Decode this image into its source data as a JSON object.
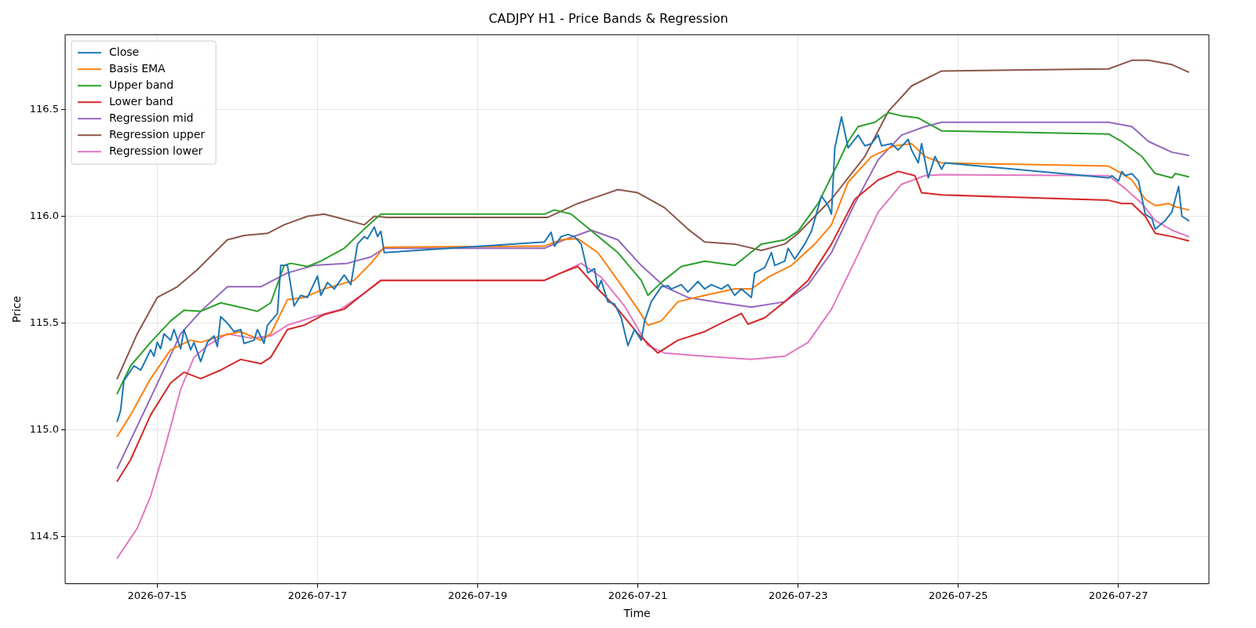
{
  "chart_data": {
    "type": "line",
    "title": "CADJPY H1 - Price Bands & Regression",
    "xlabel": "Time",
    "ylabel": "Price",
    "xlim": [
      "2026-07-13T20:24",
      "2026-07-28T03:05"
    ],
    "xticks": [
      "2026-07-15",
      "2026-07-17",
      "2026-07-19",
      "2026-07-21",
      "2026-07-23",
      "2026-07-25",
      "2026-07-27"
    ],
    "ylim": [
      114.28,
      116.85
    ],
    "yticks": [
      114.5,
      {
        "value": 115,
        "label": "115.0"
      },
      115.5,
      {
        "value": 116,
        "label": "116.0"
      },
      116.5
    ],
    "grid": true,
    "legend": "top left",
    "series": [
      {
        "name": "Close",
        "color": "#1f77b4",
        "x": [
          "2026-07-14T12:00",
          "2026-07-14T13:00",
          "2026-07-14T14:00",
          "2026-07-14T17:00",
          "2026-07-14T19:00",
          "2026-07-14T20:00",
          "2026-07-14T22:00",
          "2026-07-14T23:00",
          "2026-07-15T00:00",
          "2026-07-15T01:00",
          "2026-07-15T02:00",
          "2026-07-15T04:00",
          "2026-07-15T05:00",
          "2026-07-15T07:00",
          "2026-07-15T08:00",
          "2026-07-15T10:00",
          "2026-07-15T11:00",
          "2026-07-15T13:00",
          "2026-07-15T15:00",
          "2026-07-15T17:00",
          "2026-07-15T18:00",
          "2026-07-15T19:00",
          "2026-07-15T21:00",
          "2026-07-15T23:00",
          "2026-07-16T01:00",
          "2026-07-16T02:00",
          "2026-07-16T05:00",
          "2026-07-16T06:00",
          "2026-07-16T08:00",
          "2026-07-16T09:00",
          "2026-07-16T12:00",
          "2026-07-16T13:00",
          "2026-07-16T15:00",
          "2026-07-16T17:00",
          "2026-07-16T19:00",
          "2026-07-16T21:00",
          "2026-07-17T00:00",
          "2026-07-17T01:00",
          "2026-07-17T03:00",
          "2026-07-17T05:00",
          "2026-07-17T08:00",
          "2026-07-17T10:00",
          "2026-07-17T12:00",
          "2026-07-17T14:00",
          "2026-07-17T15:00",
          "2026-07-17T17:00",
          "2026-07-17T18:00",
          "2026-07-17T19:00",
          "2026-07-17T20:00",
          "2026-07-19T20:00",
          "2026-07-19T22:00",
          "2026-07-19T23:00",
          "2026-07-20T01:00",
          "2026-07-20T03:00",
          "2026-07-20T05:00",
          "2026-07-20T07:00",
          "2026-07-20T09:00",
          "2026-07-20T11:00",
          "2026-07-20T12:00",
          "2026-07-20T13:00",
          "2026-07-20T15:00",
          "2026-07-20T17:00",
          "2026-07-20T19:00",
          "2026-07-20T21:00",
          "2026-07-20T23:00",
          "2026-07-21T01:00",
          "2026-07-21T02:00",
          "2026-07-21T04:00",
          "2026-07-21T07:00",
          "2026-07-21T09:00",
          "2026-07-21T10:00",
          "2026-07-21T13:00",
          "2026-07-21T15:00",
          "2026-07-21T18:00",
          "2026-07-21T20:00",
          "2026-07-21T22:00",
          "2026-07-22T01:00",
          "2026-07-22T03:00",
          "2026-07-22T05:00",
          "2026-07-22T07:00",
          "2026-07-22T10:00",
          "2026-07-22T11:00",
          "2026-07-22T14:00",
          "2026-07-22T16:00",
          "2026-07-22T17:00",
          "2026-07-22T20:00",
          "2026-07-22T21:00",
          "2026-07-22T23:00",
          "2026-07-23T02:00",
          "2026-07-23T04:00",
          "2026-07-23T07:00",
          "2026-07-23T09:00",
          "2026-07-23T10:00",
          "2026-07-23T11:00",
          "2026-07-23T13:00",
          "2026-07-23T15:00",
          "2026-07-23T18:00",
          "2026-07-23T20:00",
          "2026-07-23T22:00",
          "2026-07-24T00:00",
          "2026-07-24T01:00",
          "2026-07-24T04:00",
          "2026-07-24T06:00",
          "2026-07-24T09:00",
          "2026-07-24T10:00",
          "2026-07-24T12:00",
          "2026-07-24T13:00",
          "2026-07-24T15:00",
          "2026-07-24T17:00",
          "2026-07-24T19:00",
          "2026-07-24T20:00",
          "2026-07-26T21:00",
          "2026-07-26T22:00",
          "2026-07-27T00:00",
          "2026-07-27T01:00",
          "2026-07-27T02:00",
          "2026-07-27T04:00",
          "2026-07-27T06:00",
          "2026-07-27T08:00",
          "2026-07-27T10:00",
          "2026-07-27T11:00",
          "2026-07-27T14:00",
          "2026-07-27T16:00",
          "2026-07-27T18:00",
          "2026-07-27T19:00",
          "2026-07-27T21:00"
        ],
        "values": [
          115.04,
          115.09,
          115.23,
          115.3,
          115.28,
          115.31,
          115.375,
          115.345,
          115.41,
          115.38,
          115.45,
          115.42,
          115.47,
          115.38,
          115.47,
          115.375,
          115.41,
          115.32,
          115.41,
          115.44,
          115.39,
          115.53,
          115.5,
          115.46,
          115.47,
          115.405,
          115.42,
          115.47,
          115.405,
          115.49,
          115.545,
          115.77,
          115.77,
          115.58,
          115.63,
          115.62,
          115.72,
          115.63,
          115.69,
          115.66,
          115.725,
          115.68,
          115.87,
          115.905,
          115.895,
          115.95,
          115.905,
          115.93,
          115.83,
          115.88,
          115.925,
          115.86,
          115.905,
          115.915,
          115.905,
          115.87,
          115.735,
          115.755,
          115.66,
          115.7,
          115.6,
          115.59,
          115.525,
          115.395,
          115.47,
          115.42,
          115.51,
          115.6,
          115.67,
          115.675,
          115.66,
          115.68,
          115.645,
          115.695,
          115.66,
          115.68,
          115.66,
          115.68,
          115.63,
          115.66,
          115.62,
          115.735,
          115.76,
          115.83,
          115.77,
          115.79,
          115.85,
          115.8,
          115.87,
          115.93,
          116.095,
          116.05,
          116.01,
          116.32,
          116.465,
          116.32,
          116.38,
          116.33,
          116.34,
          116.38,
          116.33,
          116.34,
          116.31,
          116.36,
          116.31,
          116.25,
          116.34,
          116.18,
          116.28,
          116.22,
          116.25,
          116.18,
          116.19,
          116.165,
          116.21,
          116.19,
          116.2,
          116.165,
          116.01,
          115.99,
          115.94,
          115.98,
          116.02,
          116.14,
          116.0,
          115.98
        ]
      },
      {
        "name": "Basis EMA",
        "color": "#ff7f0e",
        "x": [
          "2026-07-14T12:00",
          "2026-07-14T16:00",
          "2026-07-14T22:00",
          "2026-07-15T04:00",
          "2026-07-15T10:00",
          "2026-07-15T13:00",
          "2026-07-15T19:00",
          "2026-07-16T01:00",
          "2026-07-16T07:00",
          "2026-07-16T10:00",
          "2026-07-16T15:00",
          "2026-07-16T20:00",
          "2026-07-17T02:00",
          "2026-07-17T11:00",
          "2026-07-17T16:00",
          "2026-07-17T20:00",
          "2026-07-19T20:00",
          "2026-07-20T01:00",
          "2026-07-20T06:00",
          "2026-07-20T12:00",
          "2026-07-20T18:00",
          "2026-07-21T00:00",
          "2026-07-21T03:00",
          "2026-07-21T07:00",
          "2026-07-21T12:00",
          "2026-07-21T20:00",
          "2026-07-22T05:00",
          "2026-07-22T10:00",
          "2026-07-22T15:00",
          "2026-07-22T22:00",
          "2026-07-23T05:00",
          "2026-07-23T10:00",
          "2026-07-23T15:00",
          "2026-07-23T22:00",
          "2026-07-24T05:00",
          "2026-07-24T10:00",
          "2026-07-24T14:00",
          "2026-07-24T19:00",
          "2026-07-26T21:00",
          "2026-07-27T01:00",
          "2026-07-27T04:00",
          "2026-07-27T08:00",
          "2026-07-27T11:00",
          "2026-07-27T15:00",
          "2026-07-27T17:00",
          "2026-07-27T21:00"
        ],
        "values": [
          114.97,
          115.07,
          115.24,
          115.375,
          115.42,
          115.41,
          115.44,
          115.46,
          115.42,
          115.45,
          115.61,
          115.62,
          115.66,
          115.7,
          115.78,
          115.855,
          115.86,
          115.89,
          115.895,
          115.83,
          115.7,
          115.565,
          115.49,
          115.51,
          115.6,
          115.63,
          115.66,
          115.66,
          115.715,
          115.77,
          115.87,
          115.96,
          116.16,
          116.28,
          116.33,
          116.34,
          116.28,
          116.25,
          116.235,
          116.2,
          116.17,
          116.08,
          116.05,
          116.06,
          116.045,
          116.03
        ]
      },
      {
        "name": "Upper band",
        "color": "#2ca02c",
        "x": [
          "2026-07-14T12:00",
          "2026-07-14T16:00",
          "2026-07-14T22:00",
          "2026-07-15T04:00",
          "2026-07-15T08:00",
          "2026-07-15T13:00",
          "2026-07-15T19:00",
          "2026-07-16T02:00",
          "2026-07-16T06:00",
          "2026-07-16T10:00",
          "2026-07-16T14:00",
          "2026-07-16T16:00",
          "2026-07-16T21:00",
          "2026-07-17T01:00",
          "2026-07-17T08:00",
          "2026-07-17T14:00",
          "2026-07-17T19:00",
          "2026-07-19T20:00",
          "2026-07-19T23:00",
          "2026-07-20T04:00",
          "2026-07-20T11:00",
          "2026-07-20T18:00",
          "2026-07-21T01:00",
          "2026-07-21T03:00",
          "2026-07-21T07:00",
          "2026-07-21T13:00",
          "2026-07-21T20:00",
          "2026-07-22T05:00",
          "2026-07-22T09:00",
          "2026-07-22T13:00",
          "2026-07-22T20:00",
          "2026-07-23T00:00",
          "2026-07-23T06:00",
          "2026-07-23T12:00",
          "2026-07-23T15:00",
          "2026-07-23T18:00",
          "2026-07-23T23:00",
          "2026-07-24T03:00",
          "2026-07-24T07:00",
          "2026-07-24T12:00",
          "2026-07-24T19:00",
          "2026-07-26T21:00",
          "2026-07-27T01:00",
          "2026-07-27T07:00",
          "2026-07-27T11:00",
          "2026-07-27T16:00",
          "2026-07-27T17:00",
          "2026-07-27T21:00"
        ],
        "values": [
          115.17,
          115.3,
          115.41,
          115.51,
          115.56,
          115.555,
          115.595,
          115.57,
          115.555,
          115.595,
          115.77,
          115.78,
          115.765,
          115.79,
          115.85,
          115.94,
          116.01,
          116.01,
          116.03,
          116.01,
          115.92,
          115.83,
          115.7,
          115.63,
          115.69,
          115.765,
          115.79,
          115.77,
          115.82,
          115.87,
          115.89,
          115.93,
          116.06,
          116.25,
          116.35,
          116.42,
          116.44,
          116.485,
          116.47,
          116.46,
          116.4,
          116.385,
          116.35,
          116.28,
          116.2,
          116.18,
          116.2,
          116.185
        ]
      },
      {
        "name": "Lower band",
        "color": "#d62728",
        "x": [
          "2026-07-14T12:00",
          "2026-07-14T16:00",
          "2026-07-14T22:00",
          "2026-07-15T04:00",
          "2026-07-15T08:00",
          "2026-07-15T13:00",
          "2026-07-15T19:00",
          "2026-07-16T01:00",
          "2026-07-16T07:00",
          "2026-07-16T10:00",
          "2026-07-16T15:00",
          "2026-07-16T20:00",
          "2026-07-17T02:00",
          "2026-07-17T08:00",
          "2026-07-17T14:00",
          "2026-07-17T19:00",
          "2026-07-19T20:00",
          "2026-07-20T01:00",
          "2026-07-20T06:00",
          "2026-07-20T12:00",
          "2026-07-20T18:00",
          "2026-07-21T00:00",
          "2026-07-21T06:00",
          "2026-07-21T12:00",
          "2026-07-21T20:00",
          "2026-07-22T01:00",
          "2026-07-22T07:00",
          "2026-07-22T09:00",
          "2026-07-22T14:00",
          "2026-07-22T20:00",
          "2026-07-23T03:00",
          "2026-07-23T10:00",
          "2026-07-23T17:00",
          "2026-07-24T00:00",
          "2026-07-24T06:00",
          "2026-07-24T11:00",
          "2026-07-24T13:00",
          "2026-07-24T19:00",
          "2026-07-26T21:00",
          "2026-07-27T01:00",
          "2026-07-27T04:00",
          "2026-07-27T08:00",
          "2026-07-27T11:00",
          "2026-07-27T16:00",
          "2026-07-27T21:00"
        ],
        "values": [
          114.76,
          114.86,
          115.07,
          115.22,
          115.27,
          115.24,
          115.28,
          115.33,
          115.31,
          115.34,
          115.47,
          115.49,
          115.54,
          115.565,
          115.64,
          115.7,
          115.7,
          115.735,
          115.765,
          115.66,
          115.565,
          115.45,
          115.36,
          115.42,
          115.46,
          115.5,
          115.545,
          115.495,
          115.525,
          115.6,
          115.7,
          115.87,
          116.08,
          116.17,
          116.21,
          116.19,
          116.11,
          116.1,
          116.075,
          116.06,
          116.06,
          116.0,
          115.92,
          115.905,
          115.885
        ]
      },
      {
        "name": "Regression mid",
        "color": "#9467bd",
        "x": [
          "2026-07-14T12:00",
          "2026-07-14T22:00",
          "2026-07-15T07:00",
          "2026-07-15T13:00",
          "2026-07-15T21:00",
          "2026-07-16T07:00",
          "2026-07-16T15:00",
          "2026-07-16T23:00",
          "2026-07-17T09:00",
          "2026-07-17T16:00",
          "2026-07-17T20:00",
          "2026-07-19T20:00",
          "2026-07-20T02:00",
          "2026-07-20T10:00",
          "2026-07-20T18:00",
          "2026-07-21T01:00",
          "2026-07-21T08:00",
          "2026-07-21T15:00",
          "2026-07-22T01:00",
          "2026-07-22T10:00",
          "2026-07-22T20:00",
          "2026-07-23T03:00",
          "2026-07-23T10:00",
          "2026-07-23T17:00",
          "2026-07-24T00:00",
          "2026-07-24T07:00",
          "2026-07-24T14:00",
          "2026-07-24T19:00",
          "2026-07-26T21:00",
          "2026-07-27T04:00",
          "2026-07-27T09:00",
          "2026-07-27T16:00",
          "2026-07-27T21:00"
        ],
        "values": [
          114.82,
          115.15,
          115.45,
          115.555,
          115.67,
          115.67,
          115.735,
          115.77,
          115.78,
          115.81,
          115.85,
          115.85,
          115.89,
          115.935,
          115.89,
          115.77,
          115.67,
          115.62,
          115.595,
          115.575,
          115.6,
          115.68,
          115.83,
          116.06,
          116.265,
          116.38,
          116.42,
          116.44,
          116.44,
          116.42,
          116.35,
          116.3,
          116.285
        ]
      },
      {
        "name": "Regression upper",
        "color": "#8c564b",
        "x": [
          "2026-07-14T12:00",
          "2026-07-14T18:00",
          "2026-07-15T00:00",
          "2026-07-15T06:00",
          "2026-07-15T12:00",
          "2026-07-15T21:00",
          "2026-07-16T02:00",
          "2026-07-16T09:00",
          "2026-07-16T14:00",
          "2026-07-16T21:00",
          "2026-07-17T02:00",
          "2026-07-17T07:00",
          "2026-07-17T14:00",
          "2026-07-17T17:00",
          "2026-07-17T21:00",
          "2026-07-19T21:00",
          "2026-07-20T06:00",
          "2026-07-20T18:00",
          "2026-07-21T00:00",
          "2026-07-21T08:00",
          "2026-07-21T15:00",
          "2026-07-21T20:00",
          "2026-07-22T05:00",
          "2026-07-22T13:00",
          "2026-07-22T20:00",
          "2026-07-23T00:00",
          "2026-07-23T10:00",
          "2026-07-23T20:00",
          "2026-07-24T03:00",
          "2026-07-24T10:00",
          "2026-07-24T19:00",
          "2026-07-26T21:00",
          "2026-07-27T04:00",
          "2026-07-27T09:00",
          "2026-07-27T16:00",
          "2026-07-27T21:00"
        ],
        "values": [
          115.24,
          115.45,
          115.62,
          115.67,
          115.75,
          115.89,
          115.91,
          115.92,
          115.96,
          116.0,
          116.01,
          115.99,
          115.96,
          116.0,
          115.995,
          115.995,
          116.06,
          116.125,
          116.11,
          116.04,
          115.94,
          115.88,
          115.87,
          115.84,
          115.87,
          115.92,
          116.08,
          116.28,
          116.49,
          116.61,
          116.68,
          116.69,
          116.73,
          116.73,
          116.71,
          116.675
        ]
      },
      {
        "name": "Regression lower",
        "color": "#e377c2",
        "x": [
          "2026-07-14T12:00",
          "2026-07-14T18:00",
          "2026-07-14T22:00",
          "2026-07-15T02:00",
          "2026-07-15T07:00",
          "2026-07-15T11:00",
          "2026-07-15T15:00",
          "2026-07-15T21:00",
          "2026-07-16T04:00",
          "2026-07-16T10:00",
          "2026-07-16T15:00",
          "2026-07-16T23:00",
          "2026-07-17T07:00",
          "2026-07-17T14:00",
          "2026-07-17T19:00",
          "2026-07-19T20:00",
          "2026-07-20T01:00",
          "2026-07-20T07:00",
          "2026-07-20T13:00",
          "2026-07-20T20:00",
          "2026-07-21T03:00",
          "2026-07-21T08:00",
          "2026-07-21T20:00",
          "2026-07-22T10:00",
          "2026-07-22T20:00",
          "2026-07-23T03:00",
          "2026-07-23T10:00",
          "2026-07-23T17:00",
          "2026-07-24T00:00",
          "2026-07-24T07:00",
          "2026-07-24T14:00",
          "2026-07-24T19:00",
          "2026-07-26T21:00",
          "2026-07-27T02:00",
          "2026-07-27T07:00",
          "2026-07-27T11:00",
          "2026-07-27T16:00",
          "2026-07-27T21:00"
        ],
        "values": [
          114.4,
          114.54,
          114.69,
          114.9,
          115.19,
          115.34,
          115.395,
          115.45,
          115.43,
          115.44,
          115.49,
          115.53,
          115.565,
          115.64,
          115.7,
          115.7,
          115.735,
          115.78,
          115.715,
          115.58,
          115.395,
          115.36,
          115.345,
          115.33,
          115.345,
          115.41,
          115.565,
          115.79,
          116.02,
          116.15,
          116.19,
          116.195,
          116.19,
          116.13,
          116.06,
          115.98,
          115.935,
          115.905
        ]
      }
    ]
  }
}
